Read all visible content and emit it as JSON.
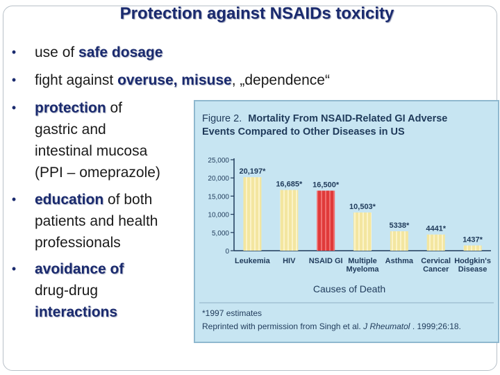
{
  "slide": {
    "title": "Protection against NSAIDs toxicity"
  },
  "bullets": [
    {
      "lines": [
        [
          {
            "t": "use of ",
            "em": false
          },
          {
            "t": "safe dosage",
            "em": true
          }
        ]
      ]
    },
    {
      "lines": [
        [
          {
            "t": "fight against ",
            "em": false
          },
          {
            "t": "overuse, misuse",
            "em": true
          },
          {
            "t": ", „dependence“",
            "em": false
          }
        ]
      ]
    },
    {
      "lines": [
        [
          {
            "t": "protection",
            "em": true
          },
          {
            "t": " of",
            "em": false
          }
        ],
        [
          {
            "t": "gastric and",
            "em": false
          }
        ],
        [
          {
            "t": "intestinal mucosa",
            "em": false
          }
        ],
        [
          {
            "t": "(PPI – omeprazole)",
            "em": false
          }
        ]
      ]
    },
    {
      "lines": [
        [
          {
            "t": "education",
            "em": true
          },
          {
            "t": " of both",
            "em": false
          }
        ],
        [
          {
            "t": "patients and health",
            "em": false
          }
        ],
        [
          {
            "t": "professionals",
            "em": false
          }
        ]
      ]
    },
    {
      "lines": [
        [
          {
            "t": "avoidance of",
            "em": true
          }
        ],
        [
          {
            "t": "drug-drug",
            "em": false
          }
        ],
        [
          {
            "t": "interactions",
            "em": true
          }
        ]
      ]
    }
  ],
  "chart_data": {
    "type": "bar",
    "title_prefix": "Figure 2.",
    "title_line1": "Mortality From NSAID-Related GI Adverse",
    "title_line2": "Events Compared to Other Diseases in US",
    "categories": [
      [
        "Leukemia"
      ],
      [
        "HIV"
      ],
      [
        "NSAID GI"
      ],
      [
        "Multiple",
        "Myeloma"
      ],
      [
        "Asthma"
      ],
      [
        "Cervical",
        "Cancer"
      ],
      [
        "Hodgkin's",
        "Disease"
      ]
    ],
    "values": [
      20197,
      16685,
      16500,
      10503,
      5338,
      4441,
      1437
    ],
    "value_labels": [
      "20,197*",
      "16,685*",
      "16,500*",
      "10,503*",
      "5338*",
      "4441*",
      "1437*"
    ],
    "highlight_index": 2,
    "yticks": [
      0,
      5000,
      10000,
      15000,
      20000,
      25000
    ],
    "ytick_labels": [
      "0",
      "5,000",
      "10,000",
      "15,000",
      "20,000",
      "25,000"
    ],
    "ylim": [
      0,
      25000
    ],
    "xlabel": "Causes of Death",
    "ylabel": "",
    "footnote": "*1997 estimates",
    "source_prefix": "Reprinted with permission from Singh et al. ",
    "source_journal": "J Rheumatol",
    "source_suffix": ". 1999;26:18.",
    "colors": {
      "bar": "#f3e6a0",
      "bar_stripe": "#fbf3c8",
      "highlight": "#e03a3a",
      "highlight_stripe": "#f07070",
      "text": "#1f3a5a",
      "panel": "#c7e5f2"
    }
  }
}
